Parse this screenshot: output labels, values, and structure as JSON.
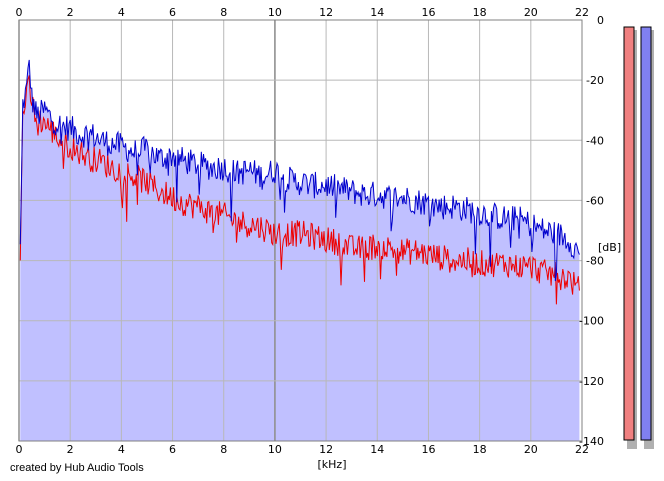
{
  "colors": {
    "background": "#ffffff",
    "plot_fill": "#c0c0ff",
    "grid": "#b8b8b8",
    "grid_major": "#909090",
    "left_channel": "#0000cc",
    "right_channel": "#ee0000",
    "meter_left_fill": "#f08080",
    "meter_right_fill": "#8080f0",
    "meter_shadow": "#b0b0b0"
  },
  "credit": "created by Hub Audio Tools",
  "chart_data": {
    "type": "line",
    "title": "",
    "xlabel": "[kHz]",
    "ylabel": "[dB]",
    "xlim": [
      0,
      22
    ],
    "ylim": [
      -140,
      0
    ],
    "x_ticks": [
      "0",
      "2",
      "4",
      "6",
      "8",
      "10",
      "12",
      "14",
      "16",
      "18",
      "20",
      "22"
    ],
    "y_ticks": [
      "0",
      "-20",
      "-40",
      "-60",
      "-80",
      "-100",
      "-120",
      "-140"
    ],
    "grid": true,
    "fill_under": "blue series",
    "series": [
      {
        "color": "#0000cc",
        "x": [
          0.05,
          0.15,
          0.3,
          0.4,
          0.5,
          0.7,
          1.0,
          1.3,
          1.6,
          2.0,
          2.4,
          2.8,
          3.2,
          3.6,
          4.0,
          4.5,
          5.0,
          5.5,
          6.0,
          6.5,
          7.0,
          7.5,
          8.0,
          8.5,
          9.0,
          9.5,
          10.0,
          10.5,
          11.0,
          11.5,
          12.0,
          12.5,
          13.0,
          13.5,
          14.0,
          14.5,
          15.0,
          15.5,
          16.0,
          16.5,
          17.0,
          17.5,
          18.0,
          18.5,
          19.0,
          19.5,
          20.0,
          20.5,
          21.0,
          21.5,
          21.9
        ],
        "values": [
          -76,
          -28,
          -23,
          -14,
          -26,
          -32,
          -30,
          -33,
          -35,
          -36,
          -38,
          -38,
          -40,
          -41,
          -42,
          -44,
          -43,
          -46,
          -45,
          -47,
          -48,
          -49,
          -49,
          -51,
          -50,
          -52,
          -50,
          -53,
          -54,
          -55,
          -55,
          -56,
          -57,
          -58,
          -58,
          -59,
          -59,
          -60,
          -61,
          -62,
          -62,
          -63,
          -64,
          -65,
          -66,
          -66,
          -68,
          -70,
          -71,
          -73,
          -78
        ]
      },
      {
        "color": "#ee0000",
        "x": [
          0.05,
          0.15,
          0.3,
          0.4,
          0.5,
          0.7,
          1.0,
          1.3,
          1.6,
          2.0,
          2.4,
          2.8,
          3.2,
          3.6,
          4.0,
          4.5,
          5.0,
          5.5,
          6.0,
          6.5,
          7.0,
          7.5,
          8.0,
          8.5,
          9.0,
          9.5,
          10.0,
          10.5,
          11.0,
          11.5,
          12.0,
          12.5,
          13.0,
          13.5,
          14.0,
          14.5,
          15.0,
          15.5,
          16.0,
          16.5,
          17.0,
          17.5,
          18.0,
          18.5,
          19.0,
          19.5,
          20.0,
          20.5,
          21.0,
          21.5,
          21.9
        ],
        "values": [
          -78,
          -30,
          -26,
          -22,
          -28,
          -33,
          -34,
          -37,
          -40,
          -42,
          -44,
          -46,
          -47,
          -49,
          -50,
          -52,
          -54,
          -57,
          -59,
          -61,
          -62,
          -64,
          -65,
          -67,
          -68,
          -69,
          -71,
          -71,
          -71,
          -72,
          -73,
          -74,
          -76,
          -76,
          -75,
          -76,
          -77,
          -77,
          -78,
          -79,
          -80,
          -80,
          -81,
          -81,
          -81,
          -82,
          -82,
          -84,
          -85,
          -86,
          -90
        ]
      }
    ]
  }
}
